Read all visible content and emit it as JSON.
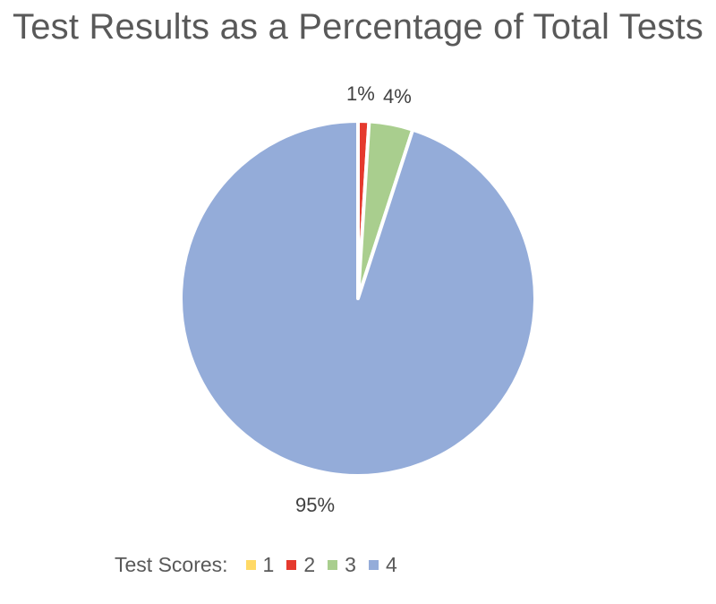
{
  "chart_data": {
    "type": "pie",
    "title": "Test Results as a Percentage of Total Tests",
    "legend_title": "Test Scores:",
    "legend_position": "bottom",
    "slices": [
      {
        "name": "1",
        "value": 0,
        "label": "",
        "color": "#FFD966"
      },
      {
        "name": "2",
        "value": 1,
        "label": "1%",
        "color": "#E53A2E"
      },
      {
        "name": "3",
        "value": 4,
        "label": "4%",
        "color": "#A9CE8E"
      },
      {
        "name": "4",
        "value": 95,
        "label": "95%",
        "color": "#94ACD9"
      }
    ]
  }
}
